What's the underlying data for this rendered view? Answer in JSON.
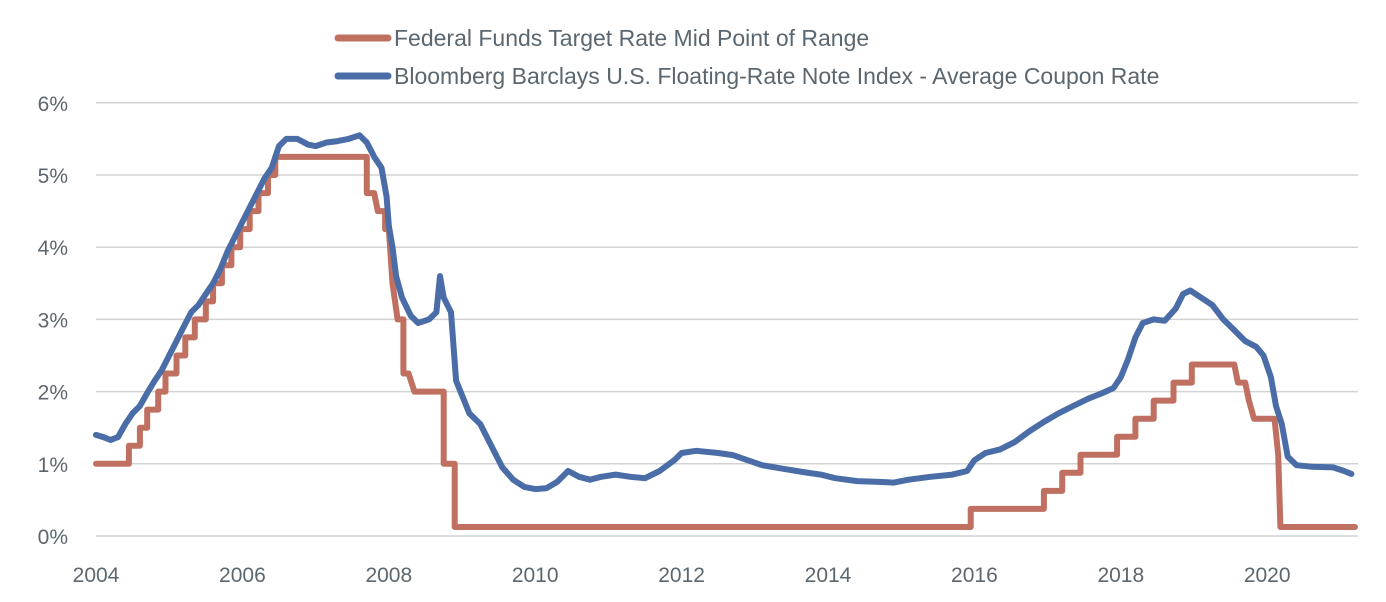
{
  "chart_data": {
    "type": "line",
    "title": "",
    "xlabel": "",
    "ylabel": "",
    "xlim": [
      2004,
      2021.25
    ],
    "ylim": [
      0,
      6
    ],
    "grid": true,
    "legend_position": "top-center",
    "x_ticks": [
      2004,
      2006,
      2008,
      2010,
      2012,
      2014,
      2016,
      2018,
      2020
    ],
    "x_tick_labels": [
      "2004",
      "2006",
      "2008",
      "2010",
      "2012",
      "2014",
      "2016",
      "2018",
      "2020"
    ],
    "y_ticks": [
      0,
      1,
      2,
      3,
      4,
      5,
      6
    ],
    "y_tick_labels": [
      "0%",
      "1%",
      "2%",
      "3%",
      "4%",
      "5%",
      "6%"
    ],
    "series": [
      {
        "name": "Federal Funds Target Rate Mid Point of Range",
        "color": "#C07060",
        "step": true,
        "points": [
          [
            2004.0,
            1.0
          ],
          [
            2004.45,
            1.0
          ],
          [
            2004.45,
            1.25
          ],
          [
            2004.6,
            1.25
          ],
          [
            2004.6,
            1.5
          ],
          [
            2004.7,
            1.5
          ],
          [
            2004.7,
            1.75
          ],
          [
            2004.85,
            1.75
          ],
          [
            2004.85,
            2.0
          ],
          [
            2004.95,
            2.0
          ],
          [
            2004.95,
            2.25
          ],
          [
            2005.1,
            2.25
          ],
          [
            2005.1,
            2.5
          ],
          [
            2005.22,
            2.5
          ],
          [
            2005.22,
            2.75
          ],
          [
            2005.35,
            2.75
          ],
          [
            2005.35,
            3.0
          ],
          [
            2005.5,
            3.0
          ],
          [
            2005.5,
            3.25
          ],
          [
            2005.6,
            3.25
          ],
          [
            2005.6,
            3.5
          ],
          [
            2005.72,
            3.5
          ],
          [
            2005.72,
            3.75
          ],
          [
            2005.85,
            3.75
          ],
          [
            2005.85,
            4.0
          ],
          [
            2005.97,
            4.0
          ],
          [
            2005.97,
            4.25
          ],
          [
            2006.1,
            4.25
          ],
          [
            2006.1,
            4.5
          ],
          [
            2006.22,
            4.5
          ],
          [
            2006.22,
            4.75
          ],
          [
            2006.35,
            4.75
          ],
          [
            2006.35,
            5.0
          ],
          [
            2006.45,
            5.0
          ],
          [
            2006.45,
            5.25
          ],
          [
            2007.7,
            5.25
          ],
          [
            2007.7,
            4.75
          ],
          [
            2007.8,
            4.75
          ],
          [
            2007.85,
            4.5
          ],
          [
            2007.95,
            4.5
          ],
          [
            2007.95,
            4.25
          ],
          [
            2008.0,
            4.25
          ],
          [
            2008.05,
            3.5
          ],
          [
            2008.12,
            3.0
          ],
          [
            2008.2,
            3.0
          ],
          [
            2008.2,
            2.25
          ],
          [
            2008.27,
            2.25
          ],
          [
            2008.35,
            2.0
          ],
          [
            2008.75,
            2.0
          ],
          [
            2008.75,
            1.0
          ],
          [
            2008.9,
            1.0
          ],
          [
            2008.9,
            0.125
          ],
          [
            2015.95,
            0.125
          ],
          [
            2015.95,
            0.375
          ],
          [
            2016.95,
            0.375
          ],
          [
            2016.95,
            0.625
          ],
          [
            2017.2,
            0.625
          ],
          [
            2017.2,
            0.875
          ],
          [
            2017.45,
            0.875
          ],
          [
            2017.45,
            1.125
          ],
          [
            2017.95,
            1.125
          ],
          [
            2017.95,
            1.375
          ],
          [
            2018.2,
            1.375
          ],
          [
            2018.2,
            1.625
          ],
          [
            2018.45,
            1.625
          ],
          [
            2018.45,
            1.875
          ],
          [
            2018.72,
            1.875
          ],
          [
            2018.72,
            2.125
          ],
          [
            2018.97,
            2.125
          ],
          [
            2018.97,
            2.375
          ],
          [
            2019.55,
            2.375
          ],
          [
            2019.6,
            2.125
          ],
          [
            2019.7,
            2.125
          ],
          [
            2019.75,
            1.875
          ],
          [
            2019.82,
            1.625
          ],
          [
            2020.1,
            1.625
          ],
          [
            2020.15,
            1.125
          ],
          [
            2020.18,
            0.125
          ],
          [
            2021.2,
            0.125
          ]
        ]
      },
      {
        "name": "Bloomberg Barclays U.S. Floating-Rate Note Index - Average Coupon Rate",
        "color": "#4A6DA7",
        "step": false,
        "points": [
          [
            2004.0,
            1.4
          ],
          [
            2004.1,
            1.37
          ],
          [
            2004.2,
            1.33
          ],
          [
            2004.3,
            1.37
          ],
          [
            2004.4,
            1.55
          ],
          [
            2004.5,
            1.7
          ],
          [
            2004.6,
            1.8
          ],
          [
            2004.7,
            1.98
          ],
          [
            2004.8,
            2.15
          ],
          [
            2004.9,
            2.3
          ],
          [
            2005.0,
            2.5
          ],
          [
            2005.1,
            2.7
          ],
          [
            2005.2,
            2.9
          ],
          [
            2005.3,
            3.1
          ],
          [
            2005.4,
            3.2
          ],
          [
            2005.5,
            3.35
          ],
          [
            2005.6,
            3.5
          ],
          [
            2005.7,
            3.7
          ],
          [
            2005.8,
            3.95
          ],
          [
            2005.9,
            4.15
          ],
          [
            2006.0,
            4.35
          ],
          [
            2006.1,
            4.55
          ],
          [
            2006.2,
            4.75
          ],
          [
            2006.3,
            4.95
          ],
          [
            2006.4,
            5.1
          ],
          [
            2006.5,
            5.4
          ],
          [
            2006.6,
            5.5
          ],
          [
            2006.75,
            5.5
          ],
          [
            2006.9,
            5.42
          ],
          [
            2007.0,
            5.4
          ],
          [
            2007.15,
            5.45
          ],
          [
            2007.3,
            5.47
          ],
          [
            2007.45,
            5.5
          ],
          [
            2007.6,
            5.55
          ],
          [
            2007.7,
            5.45
          ],
          [
            2007.8,
            5.25
          ],
          [
            2007.9,
            5.1
          ],
          [
            2007.97,
            4.7
          ],
          [
            2008.0,
            4.3
          ],
          [
            2008.05,
            4.0
          ],
          [
            2008.1,
            3.6
          ],
          [
            2008.18,
            3.3
          ],
          [
            2008.3,
            3.05
          ],
          [
            2008.4,
            2.95
          ],
          [
            2008.55,
            3.0
          ],
          [
            2008.65,
            3.1
          ],
          [
            2008.7,
            3.6
          ],
          [
            2008.75,
            3.3
          ],
          [
            2008.85,
            3.1
          ],
          [
            2008.92,
            2.15
          ],
          [
            2009.0,
            1.95
          ],
          [
            2009.1,
            1.7
          ],
          [
            2009.25,
            1.55
          ],
          [
            2009.4,
            1.25
          ],
          [
            2009.55,
            0.95
          ],
          [
            2009.7,
            0.78
          ],
          [
            2009.85,
            0.68
          ],
          [
            2010.0,
            0.65
          ],
          [
            2010.15,
            0.66
          ],
          [
            2010.3,
            0.75
          ],
          [
            2010.45,
            0.9
          ],
          [
            2010.6,
            0.82
          ],
          [
            2010.75,
            0.78
          ],
          [
            2010.9,
            0.82
          ],
          [
            2011.1,
            0.85
          ],
          [
            2011.3,
            0.82
          ],
          [
            2011.5,
            0.8
          ],
          [
            2011.7,
            0.9
          ],
          [
            2011.9,
            1.05
          ],
          [
            2012.0,
            1.15
          ],
          [
            2012.2,
            1.18
          ],
          [
            2012.5,
            1.15
          ],
          [
            2012.7,
            1.12
          ],
          [
            2012.9,
            1.05
          ],
          [
            2013.1,
            0.98
          ],
          [
            2013.4,
            0.93
          ],
          [
            2013.7,
            0.88
          ],
          [
            2013.9,
            0.85
          ],
          [
            2014.1,
            0.8
          ],
          [
            2014.4,
            0.76
          ],
          [
            2014.7,
            0.75
          ],
          [
            2014.9,
            0.74
          ],
          [
            2015.1,
            0.78
          ],
          [
            2015.4,
            0.82
          ],
          [
            2015.7,
            0.85
          ],
          [
            2015.9,
            0.9
          ],
          [
            2016.0,
            1.05
          ],
          [
            2016.15,
            1.15
          ],
          [
            2016.35,
            1.2
          ],
          [
            2016.55,
            1.3
          ],
          [
            2016.75,
            1.45
          ],
          [
            2016.95,
            1.58
          ],
          [
            2017.15,
            1.7
          ],
          [
            2017.35,
            1.8
          ],
          [
            2017.55,
            1.9
          ],
          [
            2017.75,
            1.98
          ],
          [
            2017.9,
            2.05
          ],
          [
            2018.0,
            2.2
          ],
          [
            2018.1,
            2.45
          ],
          [
            2018.2,
            2.75
          ],
          [
            2018.3,
            2.95
          ],
          [
            2018.45,
            3.0
          ],
          [
            2018.6,
            2.98
          ],
          [
            2018.75,
            3.15
          ],
          [
            2018.85,
            3.35
          ],
          [
            2018.95,
            3.4
          ],
          [
            2019.1,
            3.3
          ],
          [
            2019.25,
            3.2
          ],
          [
            2019.4,
            3.0
          ],
          [
            2019.55,
            2.85
          ],
          [
            2019.7,
            2.7
          ],
          [
            2019.85,
            2.62
          ],
          [
            2019.95,
            2.5
          ],
          [
            2020.05,
            2.2
          ],
          [
            2020.12,
            1.8
          ],
          [
            2020.2,
            1.55
          ],
          [
            2020.28,
            1.1
          ],
          [
            2020.4,
            0.98
          ],
          [
            2020.6,
            0.96
          ],
          [
            2020.9,
            0.95
          ],
          [
            2021.05,
            0.9
          ],
          [
            2021.15,
            0.86
          ]
        ]
      }
    ]
  }
}
